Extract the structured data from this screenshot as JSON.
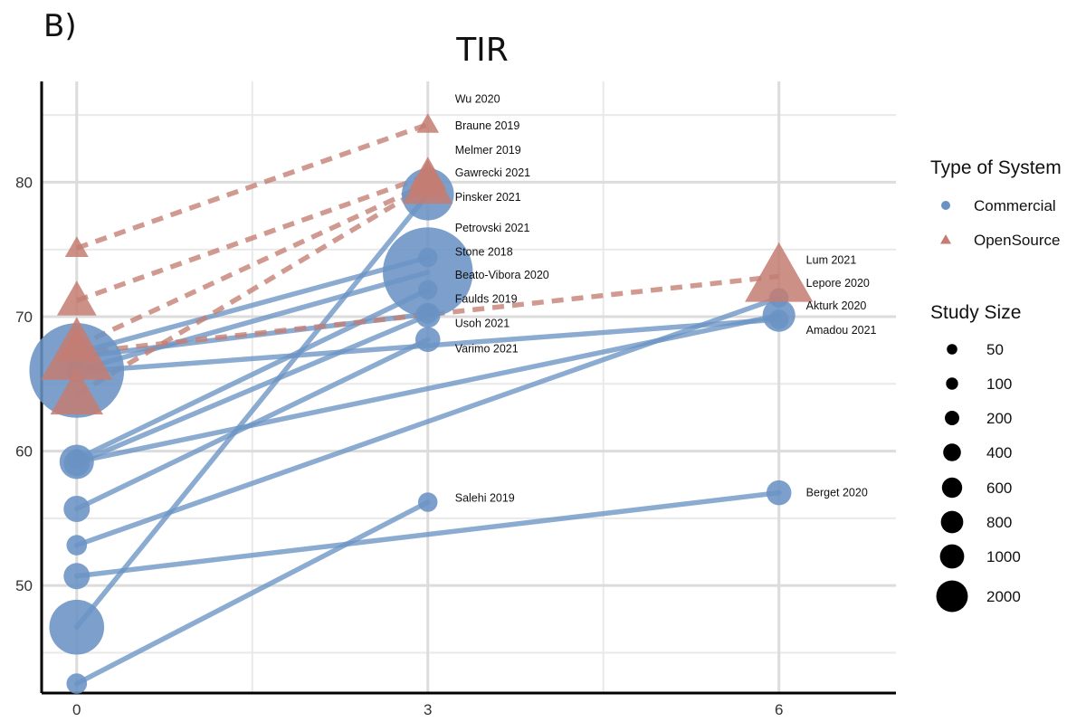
{
  "panel_letter": "B)",
  "chart_data": {
    "type": "line",
    "title": "TIR",
    "xlabel": "",
    "ylabel": "",
    "x_ticks": [
      0,
      3,
      6
    ],
    "y_ticks": [
      50,
      60,
      70,
      80
    ],
    "xlim": [
      -0.3,
      7.0
    ],
    "ylim": [
      42,
      87.5
    ],
    "grid": true,
    "legend_placement": "right",
    "colors": {
      "Commercial": "#6a93c4",
      "OpenSource": "#c47d72"
    },
    "series": [
      {
        "name": "Wu 2020",
        "system": "OpenSource",
        "size": 50,
        "x": [
          0,
          3
        ],
        "y": [
          75.1,
          84.3
        ]
      },
      {
        "name": "Braune 2019",
        "system": "OpenSource",
        "size": 200,
        "x": [
          0,
          3
        ],
        "y": [
          71.2,
          80.5
        ]
      },
      {
        "name": "Melmer 2019",
        "system": "OpenSource",
        "size": 200,
        "x": [
          0,
          3
        ],
        "y": [
          67.8,
          79.9
        ]
      },
      {
        "name": "Gawrecki 2021",
        "system": "OpenSource",
        "size": 400,
        "x": [
          0,
          3
        ],
        "y": [
          64.2,
          79.8
        ]
      },
      {
        "name": "Lum 2021",
        "system": "OpenSource",
        "size": 800,
        "x": [
          0,
          6
        ],
        "y": [
          67.3,
          73.0
        ]
      },
      {
        "name": "Pinsker 2021",
        "system": "Commercial",
        "size": 600,
        "x": [
          0,
          3
        ],
        "y": [
          46.9,
          79.1
        ]
      },
      {
        "name": "Petrovski 2021",
        "system": "Commercial",
        "size": 50,
        "x": [
          0,
          3
        ],
        "y": [
          67.3,
          74.4
        ]
      },
      {
        "name": "Stone 2018",
        "system": "Commercial",
        "size": 2000,
        "x": [
          0,
          3
        ],
        "y": [
          66.0,
          73.3
        ]
      },
      {
        "name": "Beato-Vibora 2020",
        "system": "Commercial",
        "size": 50,
        "x": [
          0,
          3
        ],
        "y": [
          59.4,
          72.0
        ]
      },
      {
        "name": "Faulds 2019",
        "system": "Commercial",
        "size": 100,
        "x": [
          0,
          3
        ],
        "y": [
          59.1,
          70.1
        ]
      },
      {
        "name": "Usoh 2021",
        "system": "Commercial",
        "size": 100,
        "x": [
          0,
          3
        ],
        "y": [
          55.7,
          68.3
        ]
      },
      {
        "name": "Varimo 2021",
        "system": "Commercial",
        "size": 50,
        "x": [
          0,
          3
        ],
        "y": [
          42.7,
          56.2
        ]
      },
      {
        "name": "Salehi 2019",
        "system": "Commercial",
        "size": 50,
        "x": [
          0,
          3
        ],
        "y": [
          67.0,
          70.2
        ]
      },
      {
        "name": "Lepore 2020",
        "system": "Commercial",
        "size": 50,
        "x": [
          0,
          6
        ],
        "y": [
          53.0,
          71.4
        ]
      },
      {
        "name": "Akturk 2020",
        "system": "Commercial",
        "size": 200,
        "x": [
          0,
          6
        ],
        "y": [
          59.2,
          70.1
        ]
      },
      {
        "name": "Amadou 2021",
        "system": "Commercial",
        "size": 50,
        "x": [
          0,
          6
        ],
        "y": [
          65.9,
          69.8
        ]
      },
      {
        "name": "Berget 2020",
        "system": "Commercial",
        "size": 100,
        "x": [
          0,
          6
        ],
        "y": [
          50.7,
          56.9
        ]
      }
    ],
    "annotations": [
      {
        "text": "Wu 2020",
        "x": 3,
        "y": 86.2
      },
      {
        "text": "Braune 2019",
        "x": 3,
        "y": 84.2
      },
      {
        "text": "Melmer 2019",
        "x": 3,
        "y": 82.4
      },
      {
        "text": "Gawrecki 2021",
        "x": 3,
        "y": 80.7
      },
      {
        "text": "Pinsker 2021",
        "x": 3,
        "y": 78.9
      },
      {
        "text": "Petrovski 2021",
        "x": 3,
        "y": 76.6
      },
      {
        "text": "Stone 2018",
        "x": 3,
        "y": 74.8
      },
      {
        "text": "Beato-Vibora 2020",
        "x": 3,
        "y": 73.1
      },
      {
        "text": "Faulds 2019",
        "x": 3,
        "y": 71.3
      },
      {
        "text": "Usoh 2021",
        "x": 3,
        "y": 69.5
      },
      {
        "text": "Varimo 2021",
        "x": 3,
        "y": 67.6
      },
      {
        "text": "Salehi 2019",
        "x": 3,
        "y": 56.5
      },
      {
        "text": "Lum 2021",
        "x": 6,
        "y": 74.2
      },
      {
        "text": "Lepore 2020",
        "x": 6,
        "y": 72.5
      },
      {
        "text": "Akturk 2020",
        "x": 6,
        "y": 70.8
      },
      {
        "text": "Amadou 2021",
        "x": 6,
        "y": 69.0
      },
      {
        "text": "Berget 2020",
        "x": 6,
        "y": 56.9
      }
    ]
  },
  "legend": {
    "type_title": "Type of System",
    "types": [
      {
        "label": "Commercial",
        "shape": "circle",
        "color": "#6a93c4"
      },
      {
        "label": "OpenSource",
        "shape": "triangle",
        "color": "#c47d72"
      }
    ],
    "size_title": "Study Size",
    "sizes": [
      {
        "label": "50",
        "value": 50
      },
      {
        "label": "100",
        "value": 100
      },
      {
        "label": "200",
        "value": 200
      },
      {
        "label": "400",
        "value": 400
      },
      {
        "label": "600",
        "value": 600
      },
      {
        "label": "800",
        "value": 800
      },
      {
        "label": "1000",
        "value": 1000
      },
      {
        "label": "2000",
        "value": 2000
      }
    ]
  }
}
